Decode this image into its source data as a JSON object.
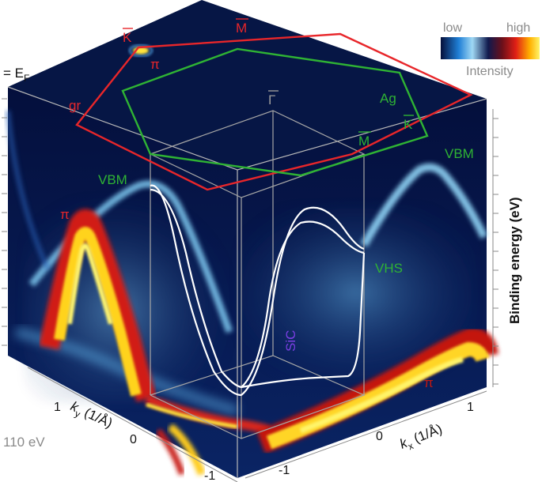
{
  "chart_data": {
    "type": "heatmap",
    "title": "",
    "photon_energy": "110 eV",
    "fermi_label": "= E",
    "fermi_sub": "F",
    "axes": {
      "kx_label": "k",
      "kx_sub": "x",
      "kx_unit": " (1/Å)",
      "kx_ticks": [
        "-1",
        "0",
        "1"
      ],
      "ky_label": "k",
      "ky_sub": "y",
      "ky_unit": " (1/Å)",
      "ky_ticks": [
        "-1",
        "0",
        "1"
      ],
      "z_label": "Binding energy (eV)"
    },
    "colorbar": {
      "low": "low",
      "high": "high",
      "title": "Intensity"
    },
    "labels": {
      "gr": "gr",
      "ag": "Ag",
      "K_red": "K",
      "M_red": "M",
      "pi_top": "π",
      "pi_left": "π",
      "pi_right": "π",
      "vbm_left": "VBM",
      "vbm_right": "VBM",
      "vhs": "VHS",
      "gamma": "Γ",
      "M_green": "M",
      "K_green": "K",
      "sic": "SiC"
    },
    "colors": {
      "graphene_bz": "#e8262a",
      "ag_bz": "#2fb334",
      "gamma_axis": "#9b9b9b",
      "sic_label": "#7b3fe4",
      "background_low": "#061645"
    }
  }
}
